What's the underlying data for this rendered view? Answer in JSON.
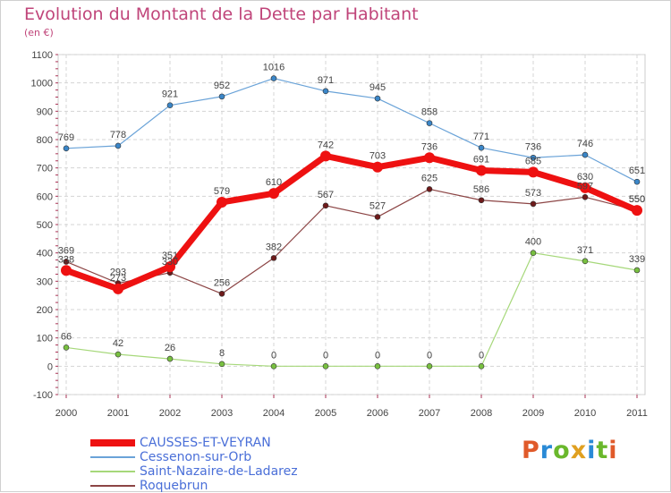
{
  "header": {
    "title": "Evolution du Montant de la Dette par Habitant",
    "subtitle": "(en €)"
  },
  "logo": {
    "text": "Proxiti",
    "colors": [
      "#e05a2a",
      "#2a8ad6",
      "#6ab82c",
      "#e0a020",
      "#2a8ad6",
      "#6ab82c",
      "#e05a2a"
    ]
  },
  "chart_data": {
    "type": "line",
    "title": "Evolution du Montant de la Dette par Habitant",
    "subtitle": "(en €)",
    "xlabel": "",
    "ylabel": "",
    "x": [
      "2000",
      "2001",
      "2002",
      "2003",
      "2004",
      "2005",
      "2006",
      "2007",
      "2008",
      "2009",
      "2010",
      "2011"
    ],
    "ylim": [
      -100,
      1100
    ],
    "yticks": [
      -100,
      0,
      100,
      200,
      300,
      400,
      500,
      600,
      700,
      800,
      900,
      1000,
      1100
    ],
    "grid": true,
    "legend_position": "bottom-left",
    "series": [
      {
        "name": "Cessenon-sur-Orb",
        "color": "#6aa3d8",
        "marker_color": "#3a86c8",
        "width": 1.2,
        "marker": 3,
        "values": [
          769,
          778,
          921,
          952,
          1016,
          971,
          945,
          858,
          771,
          736,
          746,
          651
        ]
      },
      {
        "name": "Saint-Nazaire-de-Ladarez",
        "color": "#a6d87a",
        "marker_color": "#78c040",
        "width": 1.2,
        "marker": 3,
        "values": [
          66,
          42,
          26,
          8,
          0,
          0,
          0,
          0,
          0,
          400,
          371,
          339
        ]
      },
      {
        "name": "Roquebrun",
        "color": "#8c4545",
        "marker_color": "#6e1a1a",
        "width": 1.2,
        "marker": 3,
        "values": [
          369,
          293,
          330,
          256,
          382,
          567,
          527,
          625,
          586,
          573,
          597,
          550
        ]
      },
      {
        "name": "CAUSSES-ET-VEYRAN",
        "color": "#ee1111",
        "marker_color": "#ee1111",
        "width": 7,
        "marker": 6,
        "values": [
          338,
          273,
          351,
          579,
          610,
          742,
          703,
          736,
          691,
          685,
          630,
          550
        ]
      }
    ],
    "legend_order": [
      "CAUSSES-ET-VEYRAN",
      "Cessenon-sur-Orb",
      "Saint-Nazaire-de-Ladarez",
      "Roquebrun"
    ]
  }
}
